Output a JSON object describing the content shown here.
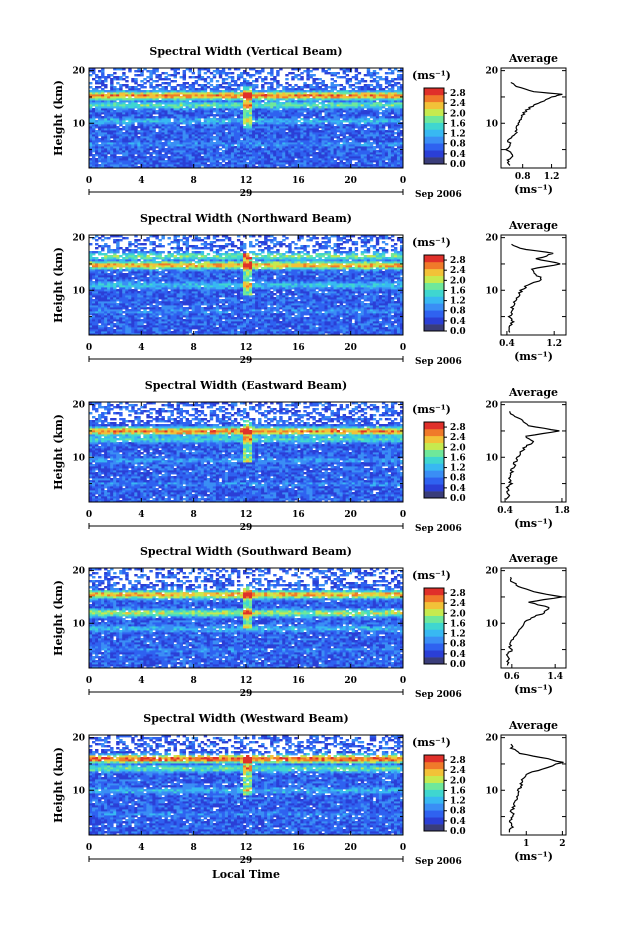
{
  "common": {
    "y_label": "Height (km)",
    "x_ticks": [
      "0",
      "4",
      "8",
      "12",
      "16",
      "20",
      "0"
    ],
    "day_label": "29",
    "month_label": "Sep 2006",
    "x_label": "Local Time",
    "cbar_unit": "(ms⁻¹)",
    "cbar_ticks": [
      "0.0",
      "0.4",
      "0.8",
      "1.2",
      "1.6",
      "2.0",
      "2.4",
      "2.8"
    ],
    "avg_title": "Average",
    "avg_unit": "(ms⁻¹)",
    "height_ticks": [
      "10",
      "20"
    ],
    "colorscale": [
      "#3a3d7a",
      "#2b3fd6",
      "#2f62f0",
      "#3a8ef5",
      "#38b8f2",
      "#3fd6d0",
      "#6fe89a",
      "#c6ea4f",
      "#f2c238",
      "#f07a2a",
      "#e0302a"
    ]
  },
  "chart_data": [
    {
      "type": "heatmap",
      "title": "Spectral Width (Vertical Beam)",
      "xlabel": "Local Time",
      "ylabel": "Height (km)",
      "xlim": [
        0,
        24
      ],
      "ylim": [
        1.5,
        20.5
      ],
      "clim": [
        0.0,
        3.0
      ],
      "layers": [
        {
          "alt": 15.3,
          "level": 0.85
        },
        {
          "alt": 13.5,
          "level": 0.55
        },
        {
          "alt": 10.5,
          "level": 0.4
        },
        {
          "alt": 6.0,
          "level": 0.3
        }
      ],
      "profile": {
        "title": "Average",
        "xlabel": "(ms⁻¹)",
        "xticks": [
          "0.8",
          "1.2"
        ],
        "xrange": [
          0.5,
          1.4
        ],
        "yticks": [
          "10",
          "20"
        ],
        "points": [
          [
            0.62,
            2
          ],
          [
            0.6,
            3
          ],
          [
            0.66,
            4
          ],
          [
            0.58,
            5
          ],
          [
            0.62,
            6
          ],
          [
            0.6,
            7
          ],
          [
            0.72,
            8
          ],
          [
            0.7,
            9
          ],
          [
            0.75,
            10
          ],
          [
            0.78,
            11
          ],
          [
            0.82,
            12
          ],
          [
            0.9,
            13
          ],
          [
            1.05,
            14
          ],
          [
            1.2,
            15
          ],
          [
            1.35,
            15.5
          ],
          [
            0.95,
            16
          ],
          [
            0.7,
            17
          ],
          [
            0.62,
            18
          ]
        ]
      }
    },
    {
      "type": "heatmap",
      "title": "Spectral Width (Northward Beam)",
      "xlabel": "Local Time",
      "ylabel": "Height (km)",
      "xlim": [
        0,
        24
      ],
      "ylim": [
        1.5,
        20.5
      ],
      "clim": [
        0.0,
        3.0
      ],
      "layers": [
        {
          "alt": 16.5,
          "level": 0.6
        },
        {
          "alt": 14.8,
          "level": 0.8
        },
        {
          "alt": 11.0,
          "level": 0.45
        },
        {
          "alt": 6.0,
          "level": 0.3
        }
      ],
      "profile": {
        "title": "Average",
        "xlabel": "(ms⁻¹)",
        "xticks": [
          "0.4",
          "1.2"
        ],
        "xrange": [
          0.3,
          1.4
        ],
        "yticks": [
          "10",
          "20"
        ],
        "points": [
          [
            0.45,
            2
          ],
          [
            0.42,
            3
          ],
          [
            0.5,
            4
          ],
          [
            0.45,
            5
          ],
          [
            0.48,
            6
          ],
          [
            0.5,
            7
          ],
          [
            0.55,
            8
          ],
          [
            0.6,
            9
          ],
          [
            0.65,
            10
          ],
          [
            0.75,
            11
          ],
          [
            1.0,
            12
          ],
          [
            0.9,
            13
          ],
          [
            0.8,
            14
          ],
          [
            1.3,
            15
          ],
          [
            0.9,
            16
          ],
          [
            1.2,
            17
          ],
          [
            0.6,
            18
          ],
          [
            0.45,
            19
          ]
        ]
      }
    },
    {
      "type": "heatmap",
      "title": "Spectral Width (Eastward Beam)",
      "xlabel": "Local Time",
      "ylabel": "Height (km)",
      "xlim": [
        0,
        24
      ],
      "ylim": [
        1.5,
        20.5
      ],
      "clim": [
        0.0,
        3.0
      ],
      "layers": [
        {
          "alt": 15.0,
          "level": 0.85
        },
        {
          "alt": 13.5,
          "level": 0.5
        },
        {
          "alt": 9.5,
          "level": 0.35
        },
        {
          "alt": 5.0,
          "level": 0.3
        }
      ],
      "profile": {
        "title": "Average",
        "xlabel": "(ms⁻¹)",
        "xticks": [
          "0.4",
          "1.8"
        ],
        "xrange": [
          0.3,
          1.9
        ],
        "yticks": [
          "10",
          "20"
        ],
        "points": [
          [
            0.45,
            2
          ],
          [
            0.5,
            3
          ],
          [
            0.45,
            4
          ],
          [
            0.55,
            5
          ],
          [
            0.5,
            6
          ],
          [
            0.55,
            7
          ],
          [
            0.6,
            8
          ],
          [
            0.65,
            9
          ],
          [
            0.7,
            10
          ],
          [
            0.8,
            11
          ],
          [
            0.9,
            12
          ],
          [
            1.1,
            13
          ],
          [
            0.9,
            14
          ],
          [
            1.7,
            15
          ],
          [
            1.0,
            16
          ],
          [
            0.8,
            17
          ],
          [
            0.6,
            18
          ],
          [
            0.5,
            19
          ]
        ]
      }
    },
    {
      "type": "heatmap",
      "title": "Spectral Width (Southward Beam)",
      "xlabel": "Local Time",
      "ylabel": "Height (km)",
      "xlim": [
        0,
        24
      ],
      "ylim": [
        1.5,
        20.5
      ],
      "clim": [
        0.0,
        3.0
      ],
      "layers": [
        {
          "alt": 15.5,
          "level": 0.8
        },
        {
          "alt": 12.0,
          "level": 0.65
        },
        {
          "alt": 9.0,
          "level": 0.4
        },
        {
          "alt": 5.0,
          "level": 0.3
        }
      ],
      "profile": {
        "title": "Average",
        "xlabel": "(ms⁻¹)",
        "xticks": [
          "0.6",
          "1.4"
        ],
        "xrange": [
          0.4,
          1.6
        ],
        "yticks": [
          "10",
          "20"
        ],
        "points": [
          [
            0.5,
            2
          ],
          [
            0.55,
            3
          ],
          [
            0.5,
            4
          ],
          [
            0.6,
            5
          ],
          [
            0.55,
            6
          ],
          [
            0.62,
            7
          ],
          [
            0.7,
            8
          ],
          [
            0.75,
            9
          ],
          [
            0.8,
            10
          ],
          [
            0.95,
            11
          ],
          [
            1.2,
            12
          ],
          [
            1.3,
            13
          ],
          [
            0.9,
            14
          ],
          [
            1.5,
            15
          ],
          [
            1.0,
            16
          ],
          [
            0.7,
            17
          ],
          [
            0.6,
            18
          ],
          [
            0.55,
            19
          ]
        ]
      }
    },
    {
      "type": "heatmap",
      "title": "Spectral Width (Westward Beam)",
      "xlabel": "Local Time",
      "ylabel": "Height (km)",
      "xlim": [
        0,
        24
      ],
      "ylim": [
        1.5,
        20.5
      ],
      "clim": [
        0.0,
        3.0
      ],
      "layers": [
        {
          "alt": 16.0,
          "level": 0.9
        },
        {
          "alt": 14.2,
          "level": 0.55
        },
        {
          "alt": 10.0,
          "level": 0.4
        },
        {
          "alt": 5.5,
          "level": 0.3
        }
      ],
      "profile": {
        "title": "Average",
        "xlabel": "(ms⁻¹)",
        "xticks": [
          "1",
          "2"
        ],
        "xrange": [
          0.3,
          2.1
        ],
        "yticks": [
          "10",
          "20"
        ],
        "points": [
          [
            0.55,
            2
          ],
          [
            0.6,
            3
          ],
          [
            0.55,
            4
          ],
          [
            0.65,
            5
          ],
          [
            0.6,
            6
          ],
          [
            0.65,
            7
          ],
          [
            0.7,
            8
          ],
          [
            0.75,
            9
          ],
          [
            0.8,
            10
          ],
          [
            0.85,
            11
          ],
          [
            0.9,
            12
          ],
          [
            1.0,
            13
          ],
          [
            1.4,
            14
          ],
          [
            2.0,
            15.3
          ],
          [
            1.6,
            16
          ],
          [
            0.8,
            17
          ],
          [
            0.6,
            18
          ],
          [
            0.55,
            19
          ]
        ]
      }
    }
  ]
}
